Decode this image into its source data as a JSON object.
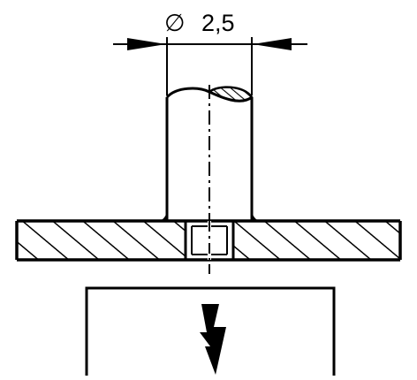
{
  "dimension": {
    "symbol": "∅",
    "value": "2,5"
  },
  "hazard_symbol": "lightning-bolt",
  "colors": {
    "ink": "#000000",
    "paper": "#ffffff"
  }
}
